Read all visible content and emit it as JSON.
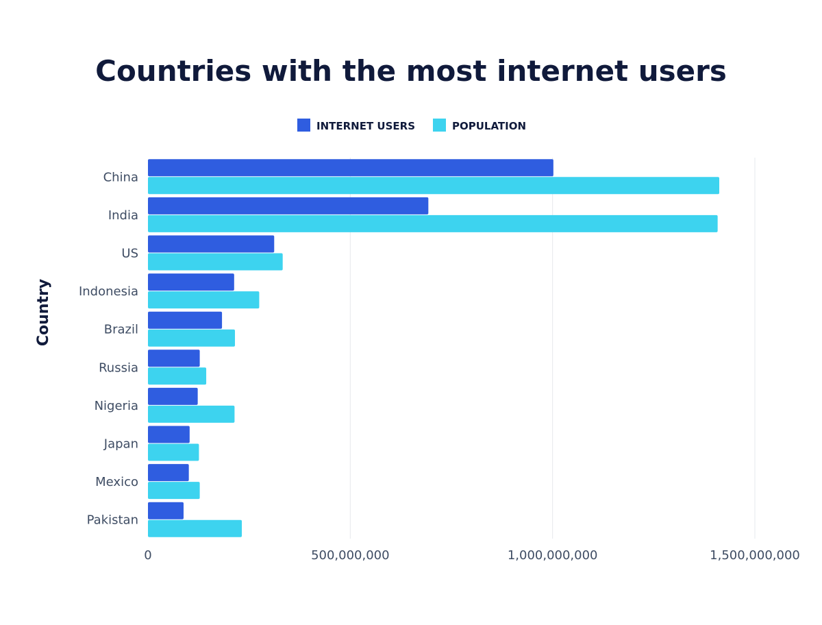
{
  "chart_data": {
    "type": "bar",
    "orientation": "horizontal",
    "title": "Countries with the most internet users",
    "ylabel": "Country",
    "xlabel": "",
    "categories": [
      "China",
      "India",
      "US",
      "Indonesia",
      "Brazil",
      "Russia",
      "Nigeria",
      "Japan",
      "Mexico",
      "Pakistan"
    ],
    "series": [
      {
        "name": "INTERNET USERS",
        "color": "#2f5de0",
        "values": [
          1002000000,
          693000000,
          312000000,
          213000000,
          183000000,
          128000000,
          123000000,
          103000000,
          101000000,
          88000000
        ]
      },
      {
        "name": "POPULATION",
        "color": "#3dd3ef",
        "values": [
          1412000000,
          1408000000,
          333000000,
          275000000,
          215000000,
          144000000,
          214000000,
          126000000,
          128000000,
          232000000
        ]
      }
    ],
    "xlim": [
      0,
      1500000000
    ],
    "xticks": [
      0,
      500000000,
      1000000000,
      1500000000
    ],
    "xtick_labels": [
      "0",
      "500,000,000",
      "1,000,000,000",
      "1,500,000,000"
    ],
    "grid": true,
    "legend_position": "top-center"
  }
}
